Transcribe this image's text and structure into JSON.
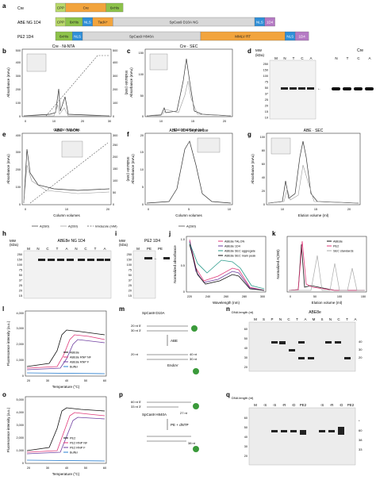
{
  "figure": {
    "constructs": [
      {
        "name": "Cre",
        "segments": [
          {
            "label": "CPP",
            "color": "#b9d96a",
            "w": 0.03
          },
          {
            "label": "Cre",
            "color": "#f2a43d",
            "w": 0.12
          },
          {
            "label": "6xHis",
            "color": "#8dc24a",
            "w": 0.05
          }
        ]
      },
      {
        "name": "ABE NG 1D4",
        "segments": [
          {
            "label": "CPP",
            "color": "#b9d96a",
            "w": 0.03
          },
          {
            "label": "6xHis",
            "color": "#8dc24a",
            "w": 0.05
          },
          {
            "label": "NLS",
            "color": "#2f8fd8",
            "w": 0.03
          },
          {
            "label": "TadA*",
            "color": "#f2a43d",
            "w": 0.06
          },
          {
            "label": "SpCas9 D10A NG",
            "color": "#d8d8d8",
            "w": 0.42
          },
          {
            "label": "NLS",
            "color": "#2f8fd8",
            "w": 0.03
          },
          {
            "label": "1D4",
            "color": "#b57ac4",
            "w": 0.03
          }
        ]
      },
      {
        "name": "PE2 1D4",
        "segments": [
          {
            "label": "6xHis",
            "color": "#8dc24a",
            "w": 0.05
          },
          {
            "label": "NLS",
            "color": "#2f8fd8",
            "w": 0.03
          },
          {
            "label": "SpCas9 H840A",
            "color": "#d8d8d8",
            "w": 0.35
          },
          {
            "label": "MMLV RT",
            "color": "#f2a43d",
            "w": 0.25
          },
          {
            "label": "NLS",
            "color": "#2f8fd8",
            "w": 0.03
          },
          {
            "label": "1D4",
            "color": "#b57ac4",
            "w": 0.04
          }
        ]
      }
    ],
    "panel_letters": {
      "a": "a",
      "b": "b",
      "c": "c",
      "d": "d",
      "e": "e",
      "f": "f",
      "g": "g",
      "h": "h",
      "i": "i",
      "j": "j",
      "k": "k",
      "l": "l",
      "m": "m",
      "n": "n",
      "o": "o",
      "p": "p",
      "q": "q"
    },
    "b": {
      "title": "Cre · Ni-NTA",
      "ylabel": "Absorbance (mAu)",
      "y2label": "Imidazole (mM)",
      "xlabel": "Column volumes",
      "yticks": [
        "0",
        "100",
        "200",
        "300",
        "400",
        "500"
      ],
      "y2ticks": [
        "0",
        "100",
        "200",
        "300",
        "400",
        "500"
      ],
      "xticks": [
        "0",
        "10",
        "20",
        "30"
      ]
    },
    "c": {
      "title": "Cre · SEC",
      "ylabel": "Absorbance (mAu)",
      "xlabel": "Elution volume (ml)",
      "yticks": [
        "0",
        "50",
        "100",
        "150"
      ],
      "xticks": [
        "10",
        "15",
        "20"
      ]
    },
    "d": {
      "kda": "(kDa)",
      "mw": "MW",
      "lanes1": [
        "M",
        "N",
        "T",
        "C",
        "A"
      ],
      "lanes2": [
        "N",
        "T",
        "C",
        "A"
      ],
      "title": "Cre",
      "ladder": [
        "250",
        "150",
        "100",
        "75",
        "50",
        "37",
        "25",
        "20",
        "15",
        "10"
      ]
    },
    "e": {
      "title": "ABE · TALON",
      "ylabel": "Absorbance (mAu)",
      "y2label": "Imidazole (mM)",
      "xlabel": "Column volumes",
      "yticks": [
        "0",
        "100",
        "200",
        "300",
        "400"
      ],
      "y2ticks": [
        "0",
        "50",
        "100",
        "150",
        "200",
        "250",
        "300"
      ],
      "xticks": [
        "0",
        "10",
        "20"
      ],
      "legend": [
        "A(280)",
        "A(260)",
        "Imidazole (mM)"
      ]
    },
    "f": {
      "title": "ABE · 1D4 Sepharose",
      "ylabel": "Absorbance (mAu)",
      "xlabel": "Column volumes",
      "yticks": [
        "0",
        "5",
        "10",
        "15",
        "20"
      ],
      "xticks": [
        "0",
        "5",
        "10"
      ],
      "legend": [
        "A(280)"
      ]
    },
    "g": {
      "title": "ABE · SEC",
      "ylabel": "Absorbance (mAu)",
      "xlabel": "Elution volume (ml)",
      "yticks": [
        "0",
        "20",
        "40",
        "60",
        "80",
        "100"
      ],
      "xticks": [
        "10",
        "15",
        "20"
      ]
    },
    "h": {
      "mw": "MW",
      "kda": "(kDa)",
      "title": "ABE8e NG 1D4",
      "lanes": [
        "M",
        "N",
        "C",
        "T",
        "A",
        "N",
        "C",
        "T",
        "A"
      ],
      "ladder": [
        "250",
        "150",
        "100",
        "75",
        "50",
        "37",
        "25",
        "20",
        "15"
      ]
    },
    "i": {
      "mw": "MW",
      "kda": "(kDa)",
      "title": "PE2 1D4",
      "lanes": [
        "M",
        "PE",
        "PE"
      ],
      "ladder": [
        "250",
        "150",
        "100",
        "75",
        "50",
        "37",
        "25",
        "20",
        "15"
      ]
    },
    "j": {
      "ylabel": "Normalized absorbance",
      "xlabel": "Wavelength (nm)",
      "xticks": [
        "220",
        "240",
        "260",
        "280",
        "300"
      ],
      "yticks": [
        "0",
        "0.5",
        "1.0"
      ],
      "legend": [
        "ABE8e TALON",
        "ABE8e 1D4",
        "ABE8e SEC aggregate",
        "ABE8e SEC main peak"
      ]
    },
    "k": {
      "ylabel": "Normalized A(280)",
      "xlabel": "Elution volume (ml)",
      "xticks": [
        "0",
        "50",
        "100",
        "150"
      ],
      "legend": [
        "ABE8e",
        "PE2",
        "SEC standards"
      ]
    },
    "l": {
      "ylabel": "Fluorescence intensity (a.u.)",
      "xlabel": "Temperature (°C)",
      "xticks": [
        "20",
        "30",
        "40",
        "50",
        "60"
      ],
      "yticks": [
        "0",
        "1,000",
        "2,000",
        "3,000",
        "4,000"
      ],
      "legend": [
        "ABE8e",
        "ABE8e RNP NF",
        "ABE8e RNP F",
        "Buffer"
      ]
    },
    "m": {
      "title": "SpCas9 D10A",
      "ts": "20 nt 5'",
      "bs": "30 nt 3'",
      "mid": "ABE",
      "endo": "EndoV",
      "n40": "40 nt",
      "n30": "30 nt",
      "n20": "20 nt"
    },
    "n": {
      "title": "ABE8e",
      "dna": "DNA length (nt)",
      "lanes": [
        "M",
        "S",
        "P",
        "N",
        "C",
        "T",
        "A",
        "M",
        "S",
        "N",
        "C",
        "T",
        "A"
      ],
      "ladder": [
        "60",
        "50",
        "40",
        "30",
        "20"
      ],
      "marks": [
        "40",
        "30",
        "20"
      ]
    },
    "o": {
      "ylabel": "Fluorescence intensity (a.u.)",
      "xlabel": "Temperature (°C)",
      "xticks": [
        "20",
        "30",
        "40",
        "50",
        "60"
      ],
      "yticks": [
        "0",
        "1,000",
        "2,000",
        "3,000",
        "4,000",
        "5,000"
      ],
      "legend": [
        "PE2",
        "PE2 RNP NF",
        "PE2 RNP F",
        "Buffer"
      ]
    },
    "p": {
      "title": "SpCas9 H840A",
      "s1": "60 nt 5'",
      "s2": "33 nt 3'",
      "mid": "PE + dNTP",
      "n27": "27 nt",
      "n38": "38 nt",
      "top": "5'-6-FAM"
    },
    "q": {
      "dna": "DNA length (nt)",
      "lanes1": [
        "M",
        "-S",
        "-S",
        "-R",
        "-D",
        "PE2"
      ],
      "lanes2": [
        "-S",
        "-R",
        "-D",
        "PE2"
      ],
      "ladder": [
        "60",
        "50",
        "40",
        "30",
        "20"
      ],
      "marks": [
        "*",
        "60",
        "38",
        "33"
      ]
    }
  }
}
